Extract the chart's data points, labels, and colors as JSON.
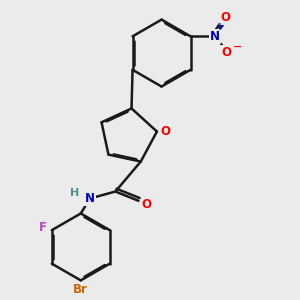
{
  "background_color": "#ebebeb",
  "bond_color": "#1a1a1a",
  "bond_width": 1.8,
  "dbo": 0.055,
  "atom_colors": {
    "O": "#ff0000",
    "N_amide": "#0000bb",
    "N_nitro": "#0000bb",
    "H": "#4a9090",
    "F": "#bb44bb",
    "Br": "#cc6600"
  },
  "figsize": [
    3.0,
    3.0
  ],
  "dpi": 100
}
